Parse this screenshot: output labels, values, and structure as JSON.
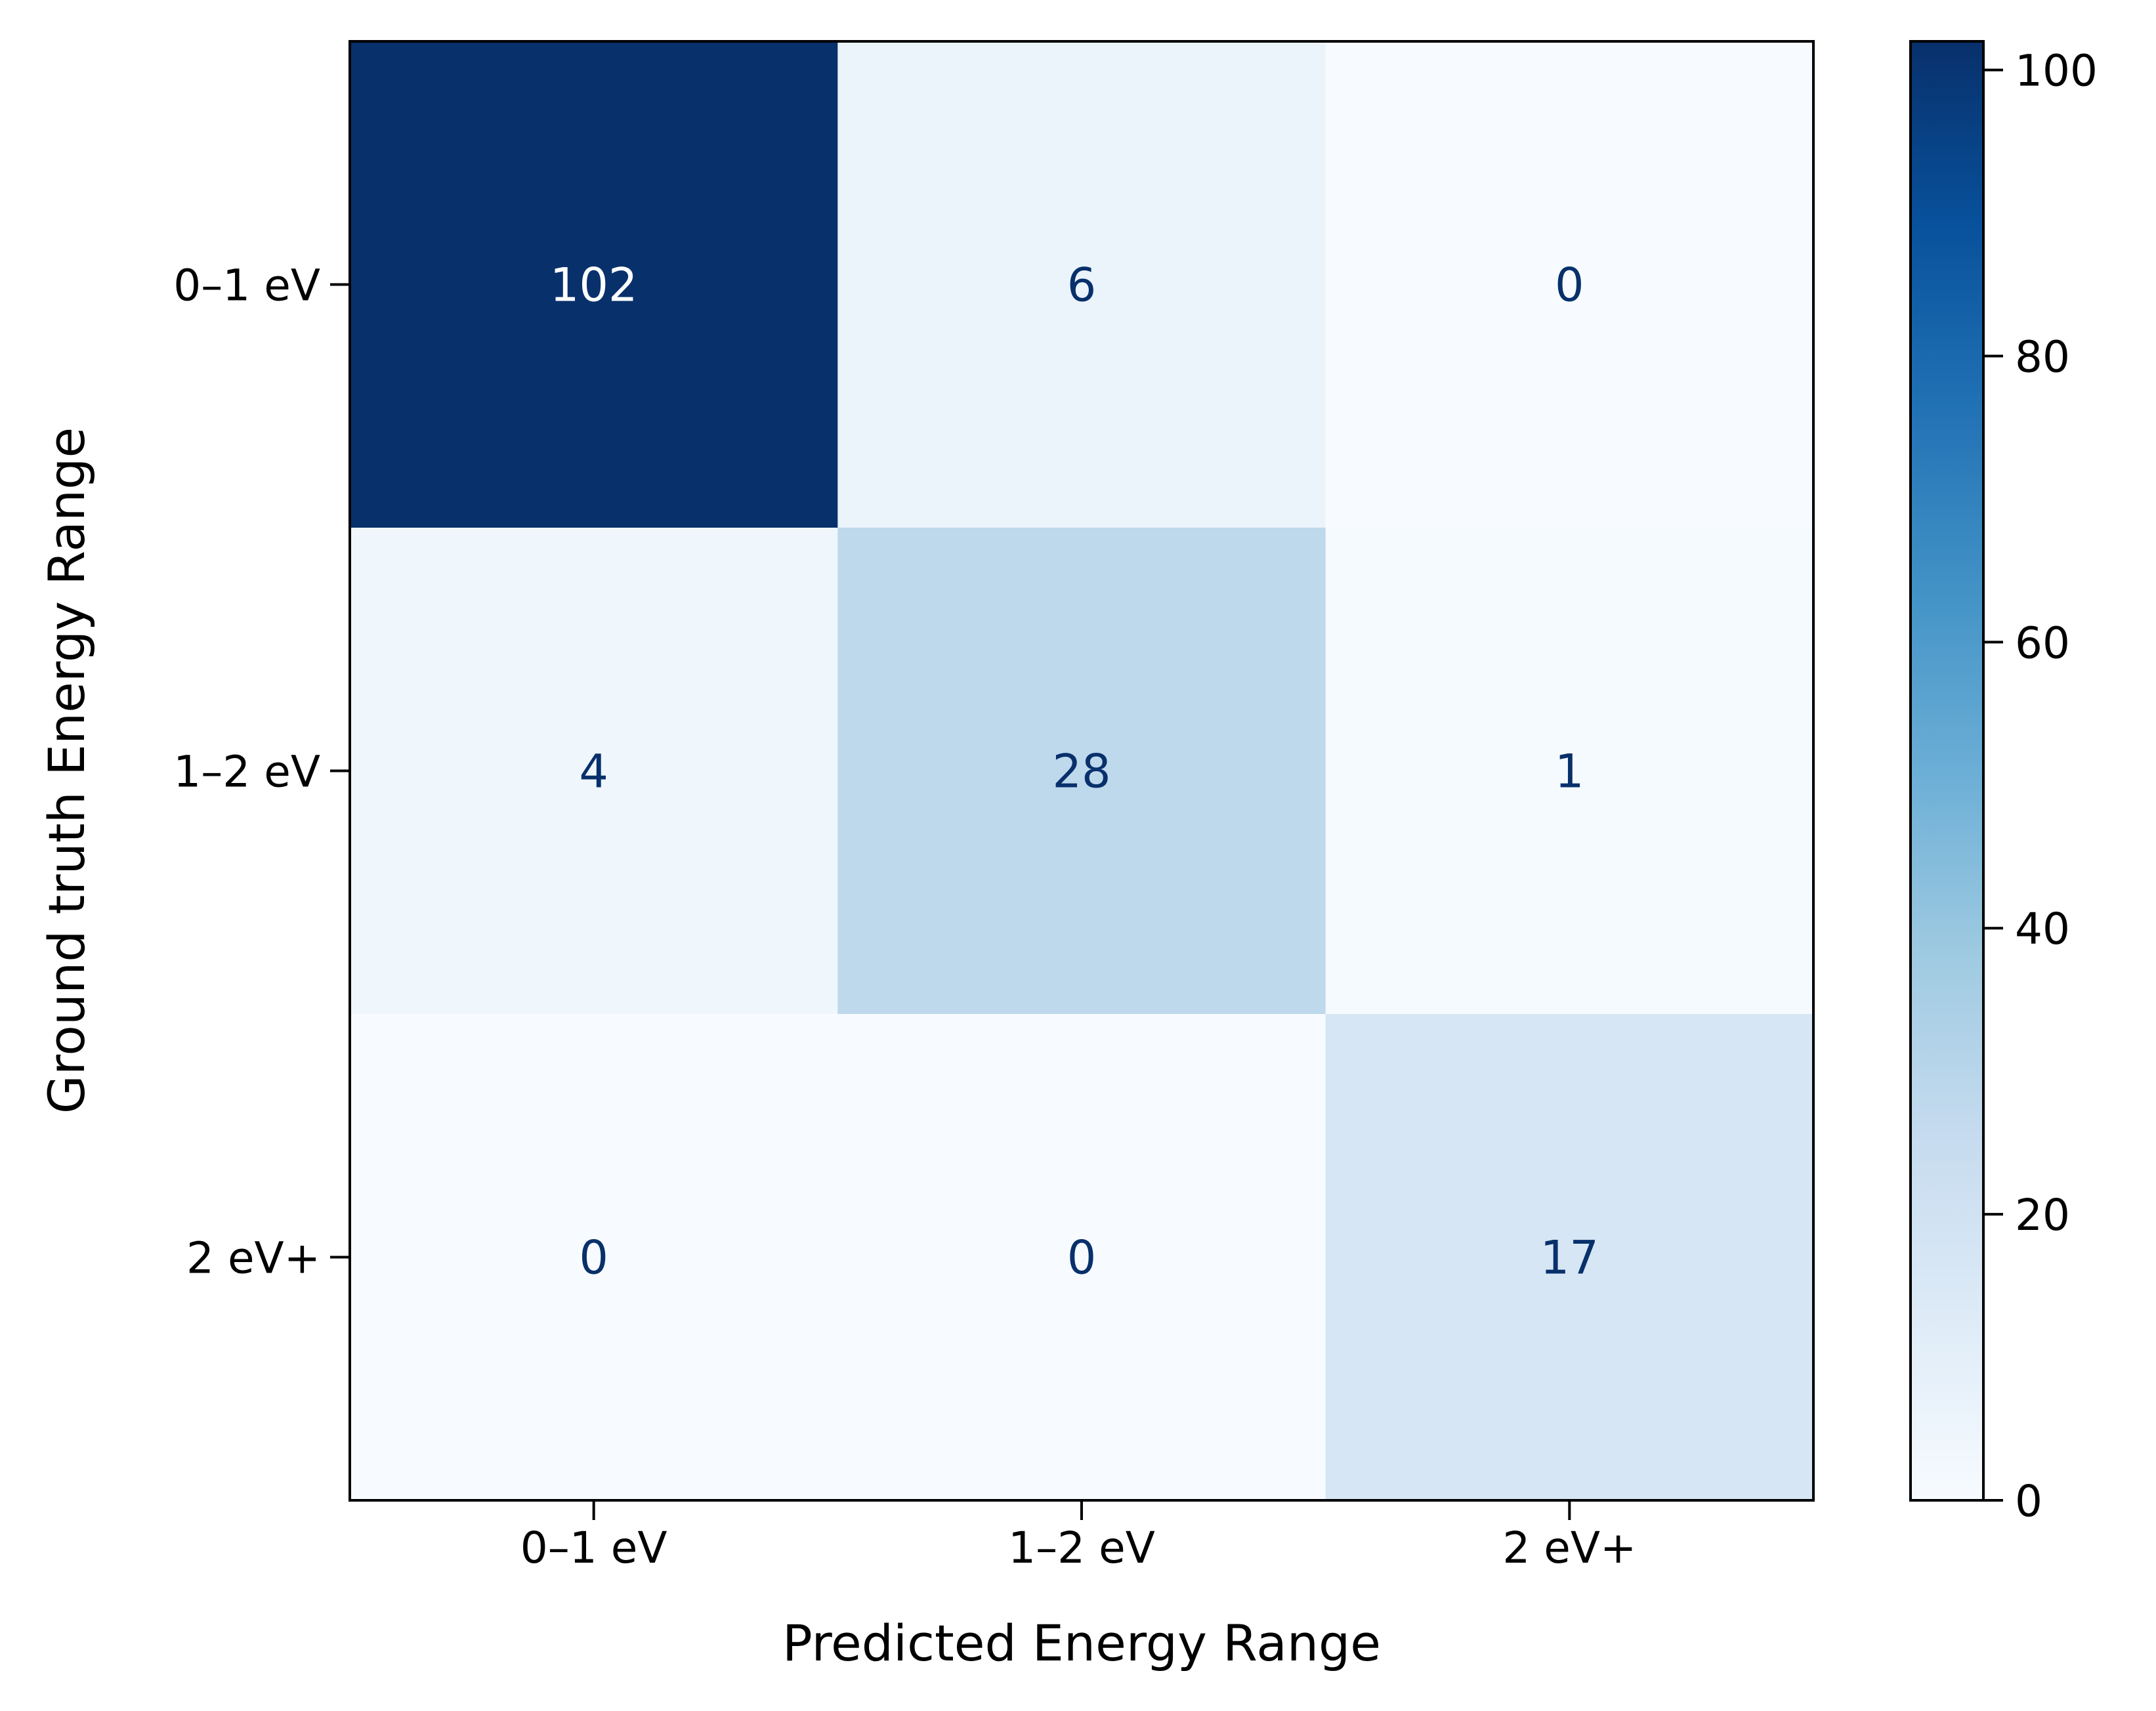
{
  "chart_data": {
    "type": "heatmap",
    "title": "",
    "xlabel": "Predicted Energy Range",
    "ylabel": "Ground truth Energy Range",
    "x_categories": [
      "0–1 eV",
      "1–2 eV",
      "2 eV+"
    ],
    "y_categories": [
      "0–1 eV",
      "1–2 eV",
      "2 eV+"
    ],
    "matrix": [
      [
        102,
        6,
        0
      ],
      [
        4,
        28,
        1
      ],
      [
        0,
        0,
        17
      ]
    ],
    "colormap": "Blues",
    "color_range": [
      0,
      102
    ],
    "colorbar": {
      "ticks": [
        0,
        20,
        40,
        60,
        80,
        100
      ],
      "tick_labels": [
        "0",
        "20",
        "40",
        "60",
        "80",
        "100"
      ],
      "placement": "right"
    },
    "grid": false,
    "text_color_light": "#ffffff",
    "text_color_dark": "#08306b"
  }
}
